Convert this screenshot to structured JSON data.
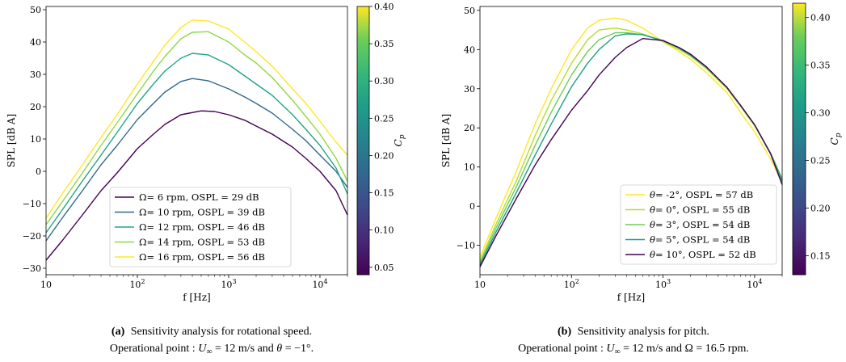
{
  "chart_data": [
    {
      "type": "line",
      "xlabel": "f [Hz]",
      "ylabel": "SPL [dB A]",
      "xscale": "log",
      "xlim": [
        10,
        20000
      ],
      "ylim": [
        -32,
        51
      ],
      "xticks": [
        10,
        100,
        1000,
        10000
      ],
      "xtick_labels": [
        "10",
        "2",
        "3",
        "4"
      ],
      "yticks": [
        -30,
        -20,
        -10,
        0,
        10,
        20,
        30,
        40,
        50
      ],
      "ytick_labels": [
        "−30",
        "−20",
        "−10",
        "0",
        "10",
        "20",
        "30",
        "40",
        "50"
      ],
      "legend_placement": "lower-center",
      "colorbar": {
        "label": "C",
        "label_sub": "p",
        "range": [
          0.04,
          0.4
        ],
        "ticks": [
          0.05,
          0.1,
          0.15,
          0.2,
          0.25,
          0.3,
          0.35,
          0.4
        ],
        "tick_labels": [
          "0.05",
          "0.10",
          "0.15",
          "0.20",
          "0.25",
          "0.30",
          "0.35",
          "0.40"
        ]
      },
      "series": [
        {
          "symbol": "Ω",
          "text": "= 6 rpm, OSPL = 29 dB",
          "color": "#440154",
          "x": [
            10,
            15,
            25,
            40,
            60,
            100,
            150,
            200,
            300,
            500,
            700,
            1000,
            1500,
            2000,
            3000,
            5000,
            7000,
            10000,
            15000,
            20000
          ],
          "y": [
            -27.5,
            -21.5,
            -13.5,
            -6,
            -0.5,
            7,
            11.5,
            14.5,
            17.5,
            18.7,
            18.5,
            17.5,
            15.8,
            14,
            11.5,
            7.5,
            4,
            0,
            -6,
            -13.5
          ]
        },
        {
          "symbol": "Ω",
          "text": "= 10 rpm, OSPL = 39 dB",
          "color": "#31688e",
          "x": [
            10,
            15,
            25,
            40,
            60,
            100,
            150,
            200,
            300,
            400,
            600,
            1000,
            1500,
            2000,
            3000,
            5000,
            7000,
            10000,
            15000,
            20000
          ],
          "y": [
            -21.5,
            -14.5,
            -6,
            2,
            8,
            16,
            21,
            24.5,
            27.8,
            28.7,
            28,
            25.5,
            23,
            21,
            18,
            13,
            9.5,
            5,
            0,
            -5
          ]
        },
        {
          "symbol": "Ω",
          "text": "= 12 rpm, OSPL = 46 dB",
          "color": "#21a585",
          "x": [
            10,
            15,
            25,
            40,
            60,
            100,
            150,
            200,
            300,
            400,
            600,
            1000,
            1500,
            2000,
            3000,
            5000,
            7000,
            10000,
            15000,
            20000
          ],
          "y": [
            -19,
            -12,
            -3,
            5,
            12,
            21,
            27,
            31,
            35,
            36.5,
            36,
            33,
            29.5,
            27,
            23.5,
            17.5,
            13,
            8,
            1,
            -7
          ]
        },
        {
          "symbol": "Ω",
          "text": "= 14 rpm, OSPL = 53 dB",
          "color": "#8fd744",
          "x": [
            10,
            15,
            25,
            40,
            60,
            100,
            150,
            200,
            300,
            400,
            600,
            1000,
            1500,
            2000,
            3000,
            5000,
            7000,
            10000,
            15000,
            20000
          ],
          "y": [
            -16.5,
            -9.5,
            -0.5,
            8,
            15,
            24,
            31,
            35.5,
            41,
            43,
            43.2,
            40,
            36,
            33.5,
            29,
            22,
            17,
            11.5,
            4,
            -3
          ]
        },
        {
          "symbol": "Ω",
          "text": "= 16 rpm, OSPL = 56 dB",
          "color": "#fde725",
          "x": [
            10,
            15,
            25,
            40,
            60,
            100,
            150,
            200,
            300,
            400,
            600,
            1000,
            1500,
            2000,
            3000,
            5000,
            7000,
            10000,
            15000,
            20000
          ],
          "y": [
            -14.5,
            -7,
            2,
            10.5,
            17.5,
            27,
            34,
            39,
            44.5,
            46.8,
            46.5,
            44,
            40,
            37,
            32.5,
            25.5,
            21,
            15.5,
            9,
            5
          ]
        }
      ]
    },
    {
      "type": "line",
      "xlabel": "f [Hz]",
      "ylabel": "SPL [dB A]",
      "xscale": "log",
      "xlim": [
        10,
        20000
      ],
      "ylim": [
        -17.5,
        51
      ],
      "xticks": [
        10,
        100,
        1000,
        10000
      ],
      "xtick_labels": [
        "10",
        "2",
        "3",
        "4"
      ],
      "yticks": [
        -10,
        0,
        10,
        20,
        30,
        40,
        50
      ],
      "ytick_labels": [
        "−10",
        "0",
        "10",
        "20",
        "30",
        "40",
        "50"
      ],
      "legend_placement": "lower-right",
      "colorbar": {
        "label": "C",
        "label_sub": "p",
        "range": [
          0.13,
          0.415
        ],
        "ticks": [
          0.15,
          0.2,
          0.25,
          0.3,
          0.35,
          0.4
        ],
        "tick_labels": [
          "0.15",
          "0.20",
          "0.25",
          "0.30",
          "0.35",
          "0.40"
        ]
      },
      "series": [
        {
          "symbol": "θ",
          "text": "= -2°, OSPL = 57 dB",
          "color": "#fde725",
          "x": [
            10,
            15,
            25,
            40,
            60,
            100,
            150,
            200,
            300,
            400,
            600,
            1000,
            1500,
            2000,
            3000,
            5000,
            7000,
            10000,
            15000,
            20000
          ],
          "y": [
            -13,
            -3,
            9,
            21,
            30,
            40,
            45.5,
            47.5,
            48,
            47.5,
            45.5,
            42,
            39.5,
            37.5,
            34,
            29,
            24,
            19,
            12,
            6
          ]
        },
        {
          "symbol": "θ",
          "text": "= 0°, OSPL = 55 dB",
          "color": "#b5de2b",
          "x": [
            10,
            15,
            25,
            40,
            60,
            100,
            150,
            200,
            300,
            400,
            600,
            1000,
            1500,
            2000,
            3000,
            5000,
            7000,
            10000,
            15000,
            20000
          ],
          "y": [
            -14,
            -4.5,
            6.5,
            18,
            27,
            36.5,
            42.5,
            45,
            45.5,
            45,
            44,
            42,
            40,
            38.3,
            35,
            30,
            25.5,
            20.5,
            13.5,
            7
          ]
        },
        {
          "symbol": "θ",
          "text": "= 3°, OSPL = 54 dB",
          "color": "#6ece58",
          "x": [
            10,
            15,
            25,
            40,
            60,
            100,
            150,
            200,
            300,
            400,
            600,
            1000,
            1500,
            2000,
            3000,
            5000,
            7000,
            10000,
            15000,
            20000
          ],
          "y": [
            -14.5,
            -5.5,
            5,
            15.5,
            24,
            33.5,
            39.5,
            42.5,
            44.3,
            44.3,
            43.8,
            42.2,
            40.3,
            38.5,
            35.3,
            30.2,
            25.8,
            20.8,
            13.5,
            7
          ]
        },
        {
          "symbol": "θ",
          "text": "= 5°, OSPL = 54 dB",
          "color": "#1f9e89",
          "x": [
            10,
            15,
            25,
            40,
            60,
            100,
            150,
            200,
            300,
            400,
            600,
            1000,
            1500,
            2000,
            3000,
            5000,
            7000,
            10000,
            15000,
            20000
          ],
          "y": [
            -15,
            -6.5,
            3.5,
            13,
            21,
            30.5,
            36.5,
            40,
            43.5,
            44,
            43.8,
            42.3,
            40.4,
            38.6,
            35.4,
            30.3,
            25.8,
            20.8,
            13.5,
            6.5
          ]
        },
        {
          "symbol": "θ",
          "text": "= 10°, OSPL = 52 dB",
          "color": "#440154",
          "x": [
            10,
            15,
            25,
            40,
            60,
            100,
            150,
            200,
            300,
            400,
            600,
            1000,
            1500,
            2000,
            3000,
            5000,
            7000,
            10000,
            15000,
            20000
          ],
          "y": [
            -15.5,
            -7.5,
            2,
            10.5,
            17,
            24.5,
            29.5,
            33.5,
            38,
            40.5,
            42.8,
            42.3,
            40.5,
            38.8,
            35.5,
            30.3,
            25.8,
            20.8,
            13.3,
            5.5
          ]
        }
      ]
    }
  ],
  "captions": [
    {
      "tag": "(a)",
      "title": "Sensitivity analysis for rotational speed.",
      "prefix": "Operational point : ",
      "u_sym": "U",
      "u_sub": "∞",
      "mid": " = 12 m/s and ",
      "sym2": "θ",
      "rest": " = −1°."
    },
    {
      "tag": "(b)",
      "title": "Sensitivity analysis for pitch.",
      "prefix": "Operational point : ",
      "u_sym": "U",
      "u_sub": "∞",
      "mid": " = 12 m/s and ",
      "sym2": "Ω",
      "rest": " = 16.5 rpm."
    }
  ]
}
